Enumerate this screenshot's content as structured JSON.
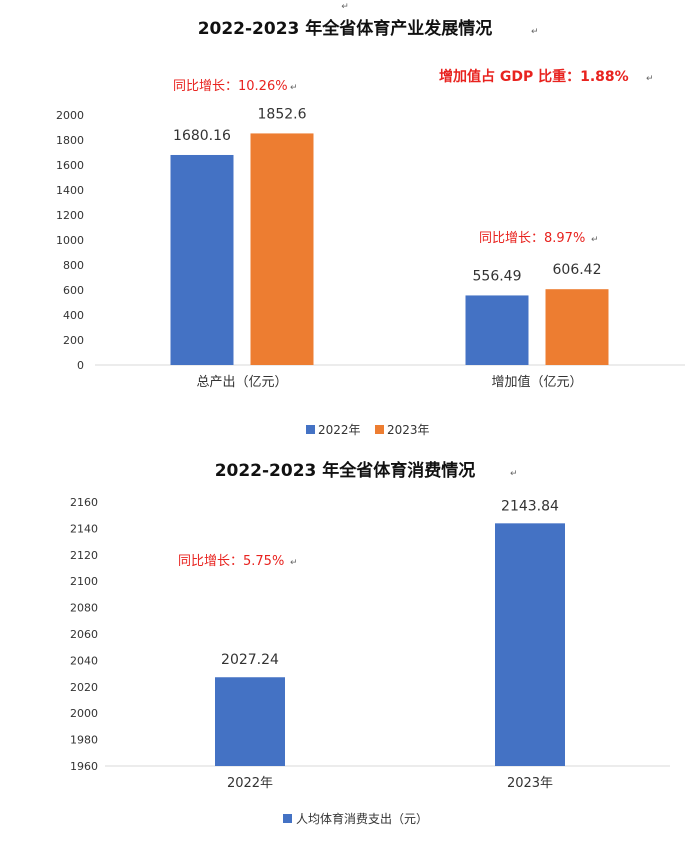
{
  "colors": {
    "series_2022": "#4472c4",
    "series_2023": "#ed7d31",
    "annotation": "#e8231f",
    "grid": "#d9d9d9"
  },
  "paragraph_mark": "↵",
  "chart_data": [
    {
      "type": "bar",
      "title": "2022-2023 年全省体育产业发展情况",
      "categories": [
        "总产出（亿元）",
        "增加值（亿元）"
      ],
      "series": [
        {
          "name": "2022年",
          "values": [
            1680.16,
            556.49
          ],
          "labels": [
            "1680.16",
            "556.49"
          ]
        },
        {
          "name": "2023年",
          "values": [
            1852.6,
            606.42
          ],
          "labels": [
            "1852.6",
            "606.42"
          ]
        }
      ],
      "ylim": [
        0,
        2000
      ],
      "yticks": [
        "0",
        "200",
        "400",
        "600",
        "800",
        "1000",
        "1200",
        "1400",
        "1600",
        "1800",
        "2000"
      ],
      "annotations": [
        "同比增长：10.26%",
        "同比增长：8.97%",
        "增加值占 GDP 比重：1.88%"
      ],
      "legend": "bottom",
      "grid": false
    },
    {
      "type": "bar",
      "title": "2022-2023 年全省体育消费情况",
      "categories": [
        "2022年",
        "2023年"
      ],
      "series": [
        {
          "name": "人均体育消费支出（元）",
          "values": [
            2027.24,
            2143.84
          ],
          "labels": [
            "2027.24",
            "2143.84"
          ]
        }
      ],
      "ylim": [
        1960,
        2160
      ],
      "yticks": [
        "1960",
        "1980",
        "2000",
        "2020",
        "2040",
        "2060",
        "2080",
        "2100",
        "2120",
        "2140",
        "2160"
      ],
      "annotations": [
        "同比增长：5.75%"
      ],
      "legend": "bottom",
      "grid": false
    }
  ]
}
